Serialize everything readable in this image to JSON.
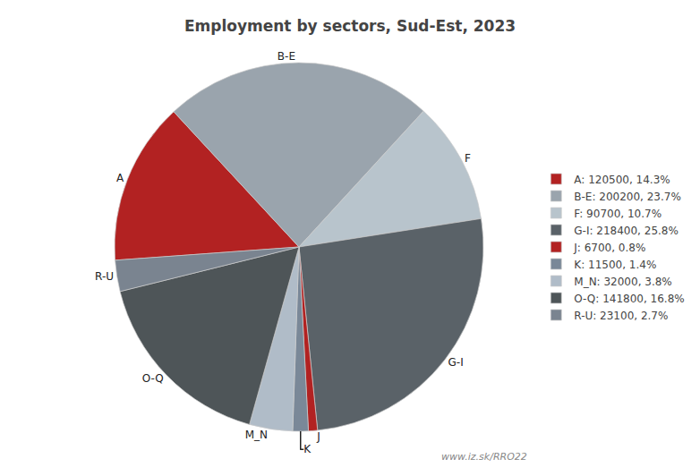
{
  "chart_data": {
    "type": "pie",
    "title": "Employment by sectors, Sud-Est, 2023",
    "categories": [
      "A",
      "B-E",
      "F",
      "G-I",
      "J",
      "K",
      "M_N",
      "O-Q",
      "R-U"
    ],
    "values": [
      120500,
      200200,
      90700,
      218400,
      6700,
      11500,
      32000,
      141800,
      23100
    ],
    "colors": [
      "#b22222",
      "#9aa4ad",
      "#b8c4cc",
      "#5a6268",
      "#b22222",
      "#7a8898",
      "#b0bcc8",
      "#4e5558",
      "#7a8490"
    ],
    "legend_labels": [
      "A: 120500, 14.3%",
      "B-E: 200200, 23.7%",
      "F: 90700, 10.7%",
      "G-I: 218400, 25.8%",
      "J: 6700, 0.8%",
      "K: 11500, 1.4%",
      "M_N: 32000, 3.8%",
      "O-Q: 141800, 16.8%",
      "R-U: 23100, 2.7%"
    ],
    "legend": "right",
    "annotation": "www.iz.sk/RRO22"
  }
}
